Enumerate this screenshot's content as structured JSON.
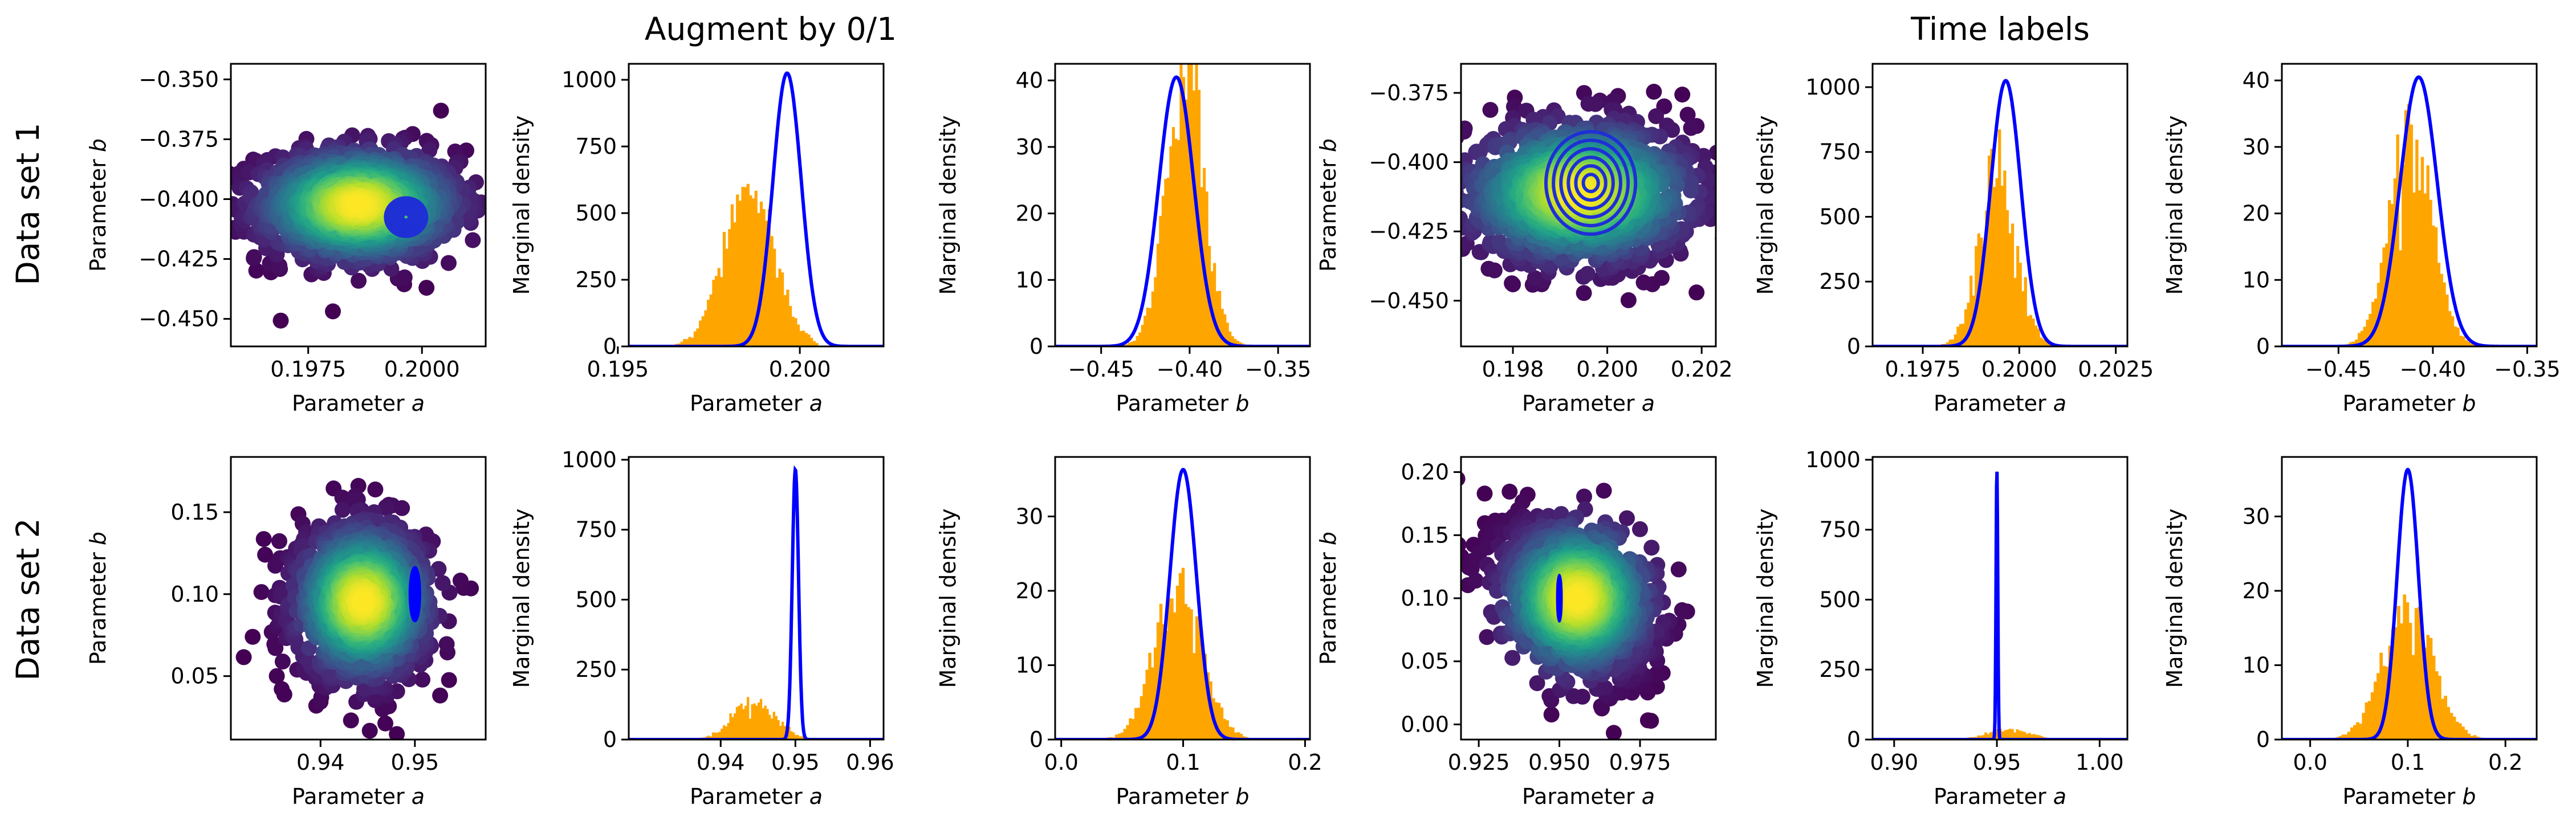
{
  "figure": {
    "titles": [
      "Augment by 0/1",
      "Time labels"
    ],
    "row_labels": [
      "Data set 1",
      "Data set 2"
    ]
  },
  "colors": {
    "hist": "#FFA500",
    "curve": "#0000FF",
    "contour": "#1f2fd6"
  },
  "chart_data": [
    {
      "id": "r0c0",
      "type": "scatter",
      "title": "",
      "xlabel": "Parameter a",
      "ylabel": "Parameter b",
      "xlim": [
        0.1958,
        0.2014
      ],
      "ylim": [
        -0.4615,
        -0.3435
      ],
      "xticks": [
        0.1975,
        0.2
      ],
      "xtick_labels": [
        "0.1975",
        "0.2000"
      ],
      "yticks": [
        -0.45,
        -0.425,
        -0.4,
        -0.375,
        -0.35
      ],
      "ytick_labels": [
        "−0.450",
        "−0.425",
        "−0.400",
        "−0.375",
        "−0.350"
      ],
      "colormap": "viridis",
      "cloud": {
        "center": [
          0.1986,
          -0.4025
        ],
        "spread": [
          0.0011,
          0.0115
        ]
      },
      "ellipse": {
        "center": [
          0.19965,
          -0.4075
        ],
        "semi_axes": [
          0.00045,
          0.008
        ],
        "levels": 6
      }
    },
    {
      "id": "r0c1",
      "type": "bar",
      "title": "",
      "xlabel": "Parameter a",
      "ylabel": "Marginal density",
      "xlim": [
        0.1953,
        0.2023
      ],
      "ylim": [
        0,
        1060
      ],
      "xticks": [
        0.195,
        0.2
      ],
      "xtick_labels": [
        "0.195",
        "0.200"
      ],
      "yticks": [
        0,
        250,
        500,
        750,
        1000
      ],
      "ytick_labels": [
        "0",
        "250",
        "500",
        "750",
        "1000"
      ],
      "series": [
        {
          "kind": "histogram",
          "mean": 0.1986,
          "peak": 565,
          "sd": 0.0007,
          "range": [
            0.1965,
            0.2005
          ],
          "bins": 55
        },
        {
          "kind": "gaussian",
          "mean": 0.19965,
          "peak": 1025,
          "sd": 0.00039,
          "range": [
            0.1953,
            0.2023
          ]
        }
      ]
    },
    {
      "id": "r0c2",
      "type": "bar",
      "title": "",
      "xlabel": "Parameter b",
      "ylabel": "Marginal density",
      "xlim": [
        -0.476,
        -0.332
      ],
      "ylim": [
        0,
        42.5
      ],
      "xticks": [
        -0.45,
        -0.4,
        -0.35
      ],
      "xtick_labels": [
        "−0.45",
        "−0.40",
        "−0.35"
      ],
      "yticks": [
        0,
        10,
        20,
        30,
        40
      ],
      "ytick_labels": [
        "0",
        "10",
        "20",
        "30",
        "40"
      ],
      "series": [
        {
          "kind": "histogram",
          "mean": -0.4025,
          "peak": 44,
          "sd": 0.0105,
          "range": [
            -0.442,
            -0.362
          ],
          "bins": 55
        },
        {
          "kind": "gaussian",
          "mean": -0.4075,
          "peak": 40.5,
          "sd": 0.0099,
          "range": [
            -0.476,
            -0.332
          ]
        }
      ]
    },
    {
      "id": "r0c3",
      "type": "scatter",
      "title": "",
      "xlabel": "Parameter a",
      "ylabel": "Parameter b",
      "xlim": [
        0.1969,
        0.2023
      ],
      "ylim": [
        -0.4665,
        -0.3645
      ],
      "xticks": [
        0.198,
        0.2,
        0.202
      ],
      "xtick_labels": [
        "0.198",
        "0.200",
        "0.202"
      ],
      "yticks": [
        -0.45,
        -0.425,
        -0.4,
        -0.375
      ],
      "ytick_labels": [
        "−0.450",
        "−0.425",
        "−0.400",
        "−0.375"
      ],
      "colormap": "viridis",
      "cloud": {
        "center": [
          0.1994,
          -0.411
        ],
        "spread": [
          0.0012,
          0.0125
        ]
      },
      "ellipse": {
        "center": [
          0.19965,
          -0.4075
        ],
        "semi_axes": [
          0.00095,
          0.0185
        ],
        "levels": 6
      }
    },
    {
      "id": "r0c4",
      "type": "bar",
      "title": "",
      "xlabel": "Parameter a",
      "ylabel": "Marginal density",
      "xlim": [
        0.1962,
        0.2028
      ],
      "ylim": [
        0,
        1090
      ],
      "xticks": [
        0.1975,
        0.2,
        0.2025
      ],
      "xtick_labels": [
        "0.1975",
        "0.2000",
        "0.2025"
      ],
      "yticks": [
        0,
        250,
        500,
        750,
        1000
      ],
      "ytick_labels": [
        "0",
        "250",
        "500",
        "750",
        "1000"
      ],
      "series": [
        {
          "kind": "histogram",
          "mean": 0.19945,
          "peak": 660,
          "sd": 0.00048,
          "range": [
            0.1975,
            0.2012
          ],
          "bins": 55
        },
        {
          "kind": "gaussian",
          "mean": 0.19965,
          "peak": 1025,
          "sd": 0.00039,
          "range": [
            0.1962,
            0.2028
          ]
        }
      ]
    },
    {
      "id": "r0c5",
      "type": "bar",
      "title": "",
      "xlabel": "Parameter b",
      "ylabel": "Marginal density",
      "xlim": [
        -0.48,
        -0.345
      ],
      "ylim": [
        0,
        42.5
      ],
      "xticks": [
        -0.45,
        -0.4,
        -0.35
      ],
      "xtick_labels": [
        "−0.45",
        "−0.40",
        "−0.35"
      ],
      "yticks": [
        0,
        10,
        20,
        30,
        40
      ],
      "ytick_labels": [
        "0",
        "10",
        "20",
        "30",
        "40"
      ],
      "series": [
        {
          "kind": "histogram",
          "mean": -0.412,
          "peak": 31,
          "sd": 0.0112,
          "range": [
            -0.45,
            -0.37
          ],
          "bins": 55
        },
        {
          "kind": "gaussian",
          "mean": -0.4075,
          "peak": 40.5,
          "sd": 0.0099,
          "range": [
            -0.48,
            -0.345
          ]
        }
      ]
    },
    {
      "id": "r1c0",
      "type": "scatter",
      "title": "",
      "xlabel": "Parameter a",
      "ylabel": "Parameter b",
      "xlim": [
        0.9305,
        0.9575
      ],
      "ylim": [
        0.0113,
        0.1837
      ],
      "xticks": [
        0.94,
        0.95
      ],
      "xtick_labels": [
        "0.94",
        "0.95"
      ],
      "yticks": [
        0.05,
        0.1,
        0.15
      ],
      "ytick_labels": [
        "0.05",
        "0.10",
        "0.15"
      ],
      "colormap": "viridis",
      "cloud": {
        "center": [
          0.9445,
          0.0955
        ],
        "spread": [
          0.0035,
          0.023
        ]
      },
      "ellipse": {
        "center": [
          0.95,
          0.1
        ],
        "semi_axes": [
          0.00055,
          0.0165
        ],
        "levels": 1,
        "filled": true
      }
    },
    {
      "id": "r1c1",
      "type": "bar",
      "title": "",
      "xlabel": "Parameter a",
      "ylabel": "Marginal density",
      "xlim": [
        0.9277,
        0.9618
      ],
      "ylim": [
        0,
        1010
      ],
      "xticks": [
        0.94,
        0.95,
        0.96
      ],
      "xtick_labels": [
        "0.94",
        "0.95",
        "0.96"
      ],
      "yticks": [
        0,
        250,
        500,
        750,
        1000
      ],
      "ytick_labels": [
        "0",
        "250",
        "500",
        "750",
        "1000"
      ],
      "series": [
        {
          "kind": "histogram",
          "mean": 0.9445,
          "peak": 130,
          "sd": 0.0029,
          "range": [
            0.9365,
            0.9525
          ],
          "bins": 55
        },
        {
          "kind": "gaussian",
          "mean": 0.95,
          "peak": 965,
          "sd": 0.00042,
          "range": [
            0.9277,
            0.9618
          ]
        }
      ]
    },
    {
      "id": "r1c2",
      "type": "bar",
      "title": "",
      "xlabel": "Parameter b",
      "ylabel": "Marginal density",
      "xlim": [
        -0.005,
        0.204
      ],
      "ylim": [
        0,
        38
      ],
      "xticks": [
        0.0,
        0.1,
        0.2
      ],
      "xtick_labels": [
        "0.0",
        "0.1",
        "0.2"
      ],
      "yticks": [
        0,
        10,
        20,
        30
      ],
      "ytick_labels": [
        "0",
        "10",
        "20",
        "30"
      ],
      "series": [
        {
          "kind": "histogram",
          "mean": 0.0965,
          "peak": 20.5,
          "sd": 0.0195,
          "range": [
            0.035,
            0.16
          ],
          "bins": 55
        },
        {
          "kind": "gaussian",
          "mean": 0.1,
          "peak": 36.3,
          "sd": 0.011,
          "range": [
            -0.005,
            0.204
          ]
        }
      ]
    },
    {
      "id": "r1c3",
      "type": "scatter",
      "title": "",
      "xlabel": "Parameter a",
      "ylabel": "Parameter b",
      "xlim": [
        0.9195,
        0.9985
      ],
      "ylim": [
        -0.012,
        0.212
      ],
      "xticks": [
        0.925,
        0.95,
        0.975
      ],
      "xtick_labels": [
        "0.925",
        "0.950",
        "0.975"
      ],
      "yticks": [
        0.0,
        0.05,
        0.1,
        0.15,
        0.2
      ],
      "ytick_labels": [
        "0.00",
        "0.05",
        "0.10",
        "0.15",
        "0.20"
      ],
      "colormap": "viridis",
      "cloud": {
        "center": [
          0.9555,
          0.1
        ],
        "spread": [
          0.0115,
          0.03
        ],
        "tilt": -0.35
      },
      "ellipse": {
        "center": [
          0.95,
          0.1
        ],
        "semi_axes": [
          0.0007,
          0.0185
        ],
        "levels": 1,
        "filled": true
      }
    },
    {
      "id": "r1c4",
      "type": "bar",
      "title": "",
      "xlabel": "Parameter a",
      "ylabel": "Marginal density",
      "xlim": [
        0.8895,
        1.0135
      ],
      "ylim": [
        0,
        1010
      ],
      "xticks": [
        0.9,
        0.95,
        1.0
      ],
      "xtick_labels": [
        "0.90",
        "0.95",
        "1.00"
      ],
      "yticks": [
        0,
        250,
        500,
        750,
        1000
      ],
      "ytick_labels": [
        "0",
        "250",
        "500",
        "750",
        "1000"
      ],
      "series": [
        {
          "kind": "histogram",
          "mean": 0.9555,
          "peak": 36,
          "sd": 0.0105,
          "range": [
            0.925,
            0.99
          ],
          "bins": 55
        },
        {
          "kind": "gaussian",
          "mean": 0.95,
          "peak": 965,
          "sd": 0.00042,
          "range": [
            0.8895,
            1.0135
          ]
        }
      ]
    },
    {
      "id": "r1c5",
      "type": "bar",
      "title": "",
      "xlabel": "Parameter b",
      "ylabel": "Marginal density",
      "xlim": [
        -0.029,
        0.232
      ],
      "ylim": [
        0,
        38
      ],
      "xticks": [
        0.0,
        0.1,
        0.2
      ],
      "xtick_labels": [
        "0.0",
        "0.1",
        "0.2"
      ],
      "yticks": [
        0,
        10,
        20,
        30
      ],
      "ytick_labels": [
        "0",
        "10",
        "20",
        "30"
      ],
      "series": [
        {
          "kind": "histogram",
          "mean": 0.1,
          "peak": 16.5,
          "sd": 0.026,
          "range": [
            0.02,
            0.185
          ],
          "bins": 55
        },
        {
          "kind": "gaussian",
          "mean": 0.1,
          "peak": 36.3,
          "sd": 0.011,
          "range": [
            -0.029,
            0.232
          ]
        }
      ]
    }
  ]
}
